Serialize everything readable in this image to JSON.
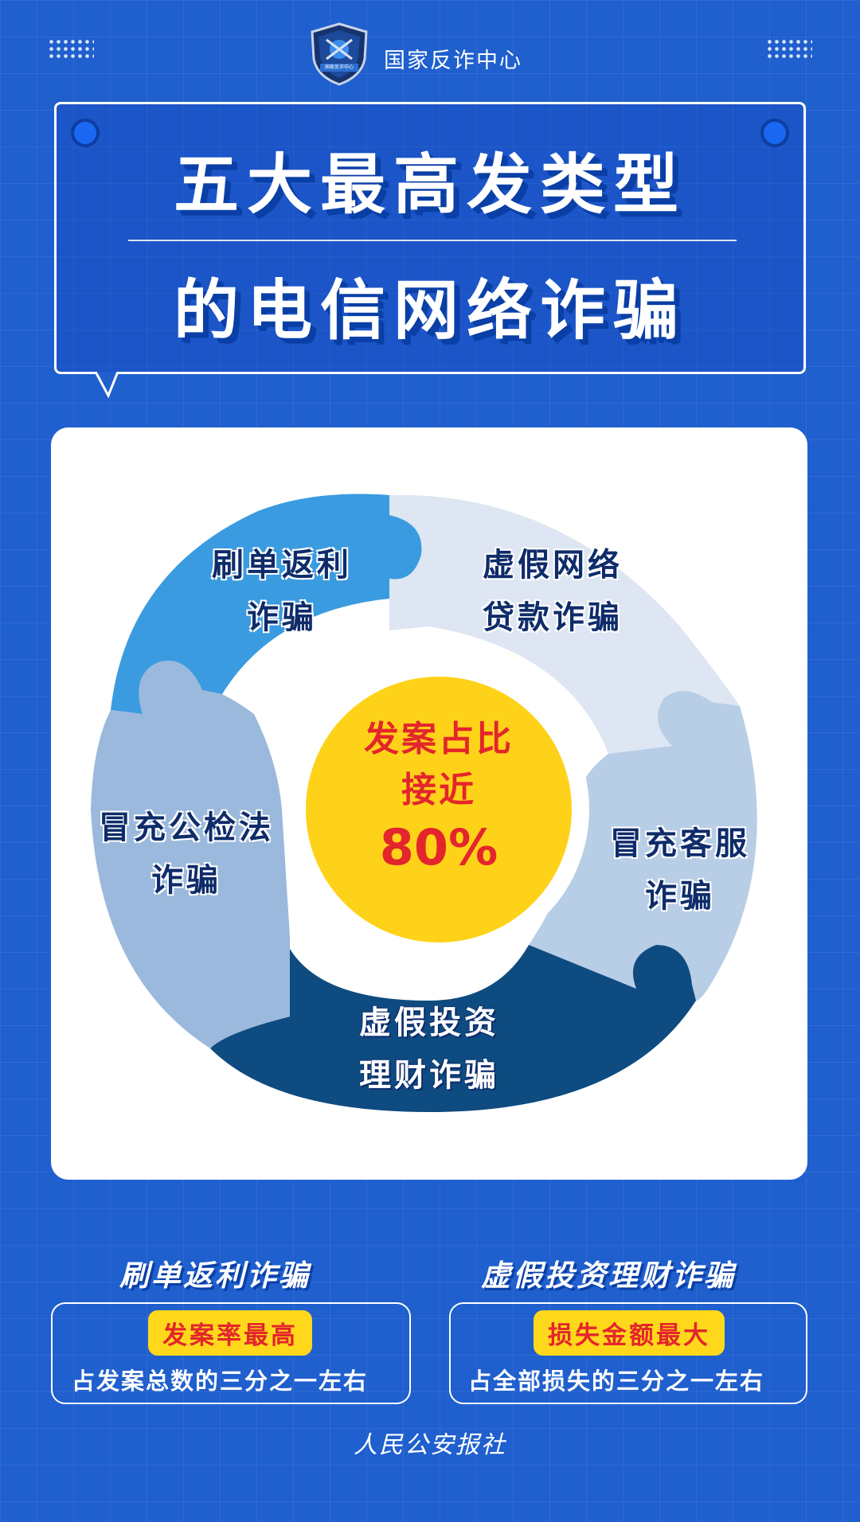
{
  "header": {
    "emblem_icon": "police-shield-emblem-icon",
    "emblem_text": "国家反诈中心",
    "label": "国家反诈中心"
  },
  "title": {
    "line1": "五大最高发类型",
    "line2": "的电信网络诈骗"
  },
  "puzzle": {
    "top_left": {
      "line1": "刷单返利",
      "line2": "诈骗",
      "color": "#3a9be0"
    },
    "top_right": {
      "line1": "虚假网络",
      "line2": "贷款诈骗",
      "color": "#dde6f2"
    },
    "right": {
      "line1": "冒充客服",
      "line2": "诈骗",
      "color": "#b8cde6"
    },
    "bottom": {
      "line1": "虚假投资",
      "line2": "理财诈骗",
      "color": "#0e4b80"
    },
    "left": {
      "line1": "冒充公检法",
      "line2": "诈骗",
      "color": "#9bb9dc"
    },
    "center": {
      "line1": "发案占比",
      "line2": "接近",
      "value": "80%",
      "color": "#ffd21a"
    }
  },
  "bottom": {
    "left": {
      "title": "刷单返利诈骗",
      "badge": "发案率最高",
      "text": "占发案总数的三分之一左右"
    },
    "right": {
      "title": "虚假投资理财诈骗",
      "badge": "损失金额最大",
      "text": "占全部损失的三分之一左右"
    }
  },
  "footer": {
    "credit": "人民公安报社"
  },
  "colors": {
    "background": "#1f5fce",
    "accent_red": "#e3262b",
    "accent_yellow": "#ffd81c"
  }
}
